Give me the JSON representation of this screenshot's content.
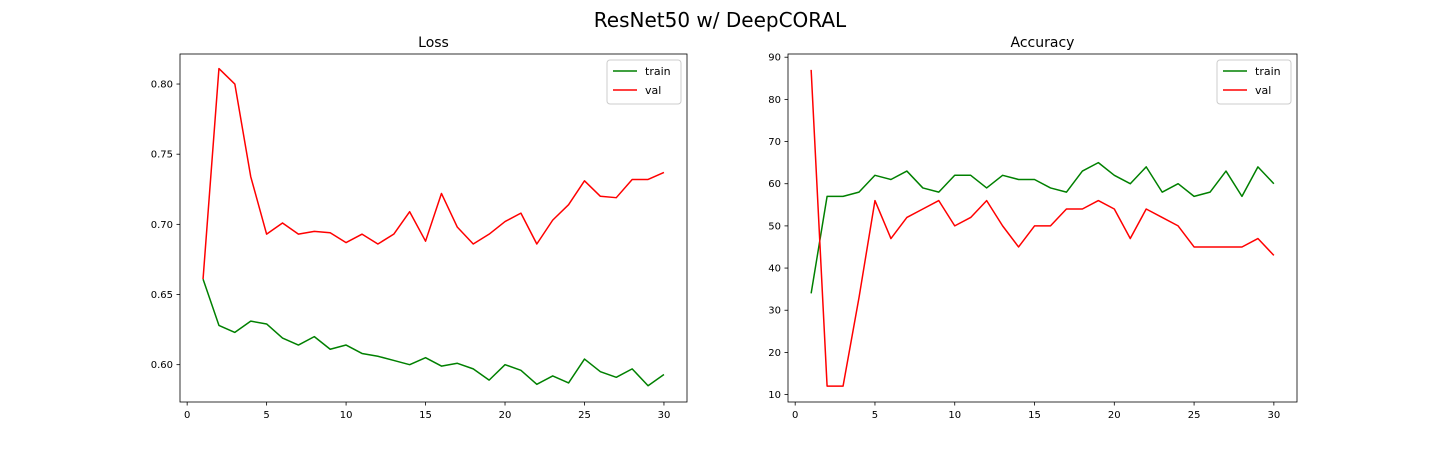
{
  "figure": {
    "suptitle": "ResNet50 w/ DeepCORAL"
  },
  "colors": {
    "train": "#008000",
    "val": "#ff0000",
    "axes": "#000000",
    "legend_border": "#cccccc"
  },
  "chart_data": [
    {
      "type": "line",
      "title": "Loss",
      "xlabel": "",
      "ylabel": "",
      "xlim": [
        -0.45,
        31.45
      ],
      "ylim": [
        0.5734,
        0.8214
      ],
      "xticks": [
        0,
        5,
        10,
        15,
        20,
        25,
        30
      ],
      "yticks": [
        0.6,
        0.65,
        0.7,
        0.75,
        0.8
      ],
      "ytick_labels": [
        "0.60",
        "0.65",
        "0.70",
        "0.75",
        "0.80"
      ],
      "grid": false,
      "legend": "top-right",
      "x": [
        1,
        2,
        3,
        4,
        5,
        6,
        7,
        8,
        9,
        10,
        11,
        12,
        13,
        14,
        15,
        16,
        17,
        18,
        19,
        20,
        21,
        22,
        23,
        24,
        25,
        26,
        27,
        28,
        29,
        30
      ],
      "series": [
        {
          "name": "train",
          "color": "#008000",
          "values": [
            0.661,
            0.628,
            0.623,
            0.631,
            0.629,
            0.619,
            0.614,
            0.62,
            0.611,
            0.614,
            0.608,
            0.606,
            0.603,
            0.6,
            0.605,
            0.599,
            0.601,
            0.597,
            0.589,
            0.6,
            0.596,
            0.586,
            0.592,
            0.587,
            0.604,
            0.595,
            0.591,
            0.597,
            0.585,
            0.593
          ]
        },
        {
          "name": "val",
          "color": "#ff0000",
          "values": [
            0.661,
            0.811,
            0.8,
            0.734,
            0.693,
            0.701,
            0.693,
            0.695,
            0.694,
            0.687,
            0.693,
            0.686,
            0.693,
            0.709,
            0.688,
            0.722,
            0.698,
            0.686,
            0.693,
            0.702,
            0.708,
            0.686,
            0.703,
            0.714,
            0.731,
            0.72,
            0.719,
            0.732,
            0.732,
            0.737
          ]
        }
      ]
    },
    {
      "type": "line",
      "title": "Accuracy",
      "xlabel": "",
      "ylabel": "",
      "xlim": [
        -0.45,
        31.45
      ],
      "ylim": [
        8.24,
        90.76
      ],
      "xticks": [
        0,
        5,
        10,
        15,
        20,
        25,
        30
      ],
      "yticks": [
        10,
        20,
        30,
        40,
        50,
        60,
        70,
        80,
        90
      ],
      "ytick_labels": [
        "10",
        "20",
        "30",
        "40",
        "50",
        "60",
        "70",
        "80",
        "90"
      ],
      "grid": false,
      "legend": "top-right",
      "x": [
        1,
        2,
        3,
        4,
        5,
        6,
        7,
        8,
        9,
        10,
        11,
        12,
        13,
        14,
        15,
        16,
        17,
        18,
        19,
        20,
        21,
        22,
        23,
        24,
        25,
        26,
        27,
        28,
        29,
        30
      ],
      "series": [
        {
          "name": "train",
          "color": "#008000",
          "values": [
            34,
            57,
            57,
            58,
            62,
            61,
            63,
            59,
            58,
            62,
            62,
            59,
            62,
            61,
            61,
            59,
            58,
            63,
            65,
            62,
            60,
            64,
            58,
            60,
            57,
            58,
            63,
            57,
            64,
            60
          ]
        },
        {
          "name": "val",
          "color": "#ff0000",
          "values": [
            87,
            12,
            12,
            33,
            56,
            47,
            52,
            54,
            56,
            50,
            52,
            56,
            50,
            45,
            50,
            50,
            54,
            54,
            56,
            54,
            47,
            54,
            52,
            50,
            45,
            45,
            45,
            45,
            47,
            43
          ]
        }
      ]
    }
  ]
}
